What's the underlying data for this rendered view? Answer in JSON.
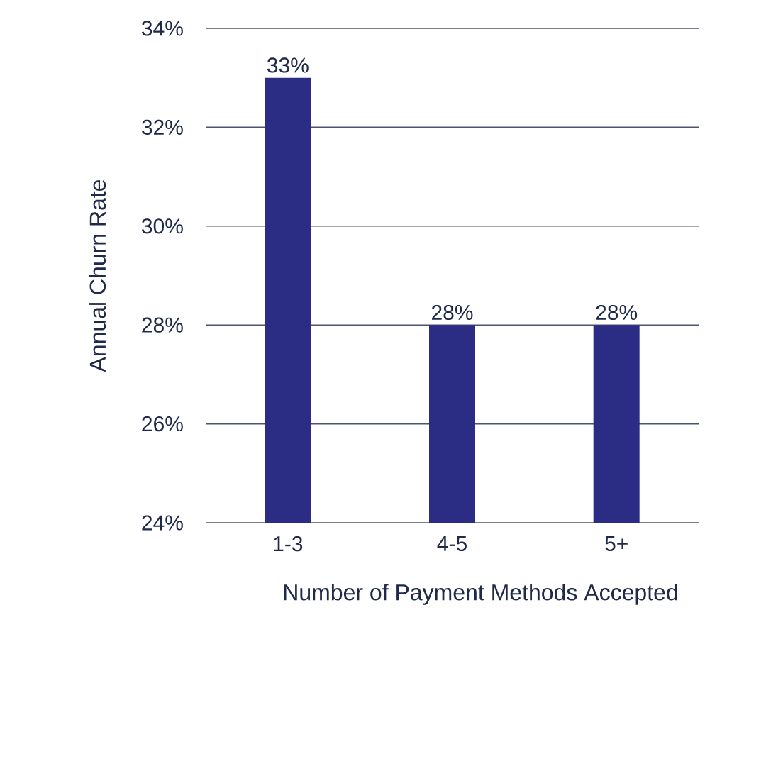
{
  "chart_data": {
    "type": "bar",
    "xlabel": "Number of Payment Methods Accepted",
    "ylabel": "Annual Churn Rate",
    "categories": [
      "1-3",
      "4-5",
      "5+"
    ],
    "values": [
      33,
      28,
      28
    ],
    "value_labels": [
      "33%",
      "28%",
      "28%"
    ],
    "color": "#2b2d84",
    "ylim": [
      24,
      34
    ],
    "yticks": [
      {
        "value": 24,
        "label": "24%"
      },
      {
        "value": 26,
        "label": "26%"
      },
      {
        "value": 28,
        "label": "28%"
      },
      {
        "value": 30,
        "label": "30%"
      },
      {
        "value": 32,
        "label": "32%"
      },
      {
        "value": 34,
        "label": "34%"
      }
    ],
    "grid": "y"
  }
}
